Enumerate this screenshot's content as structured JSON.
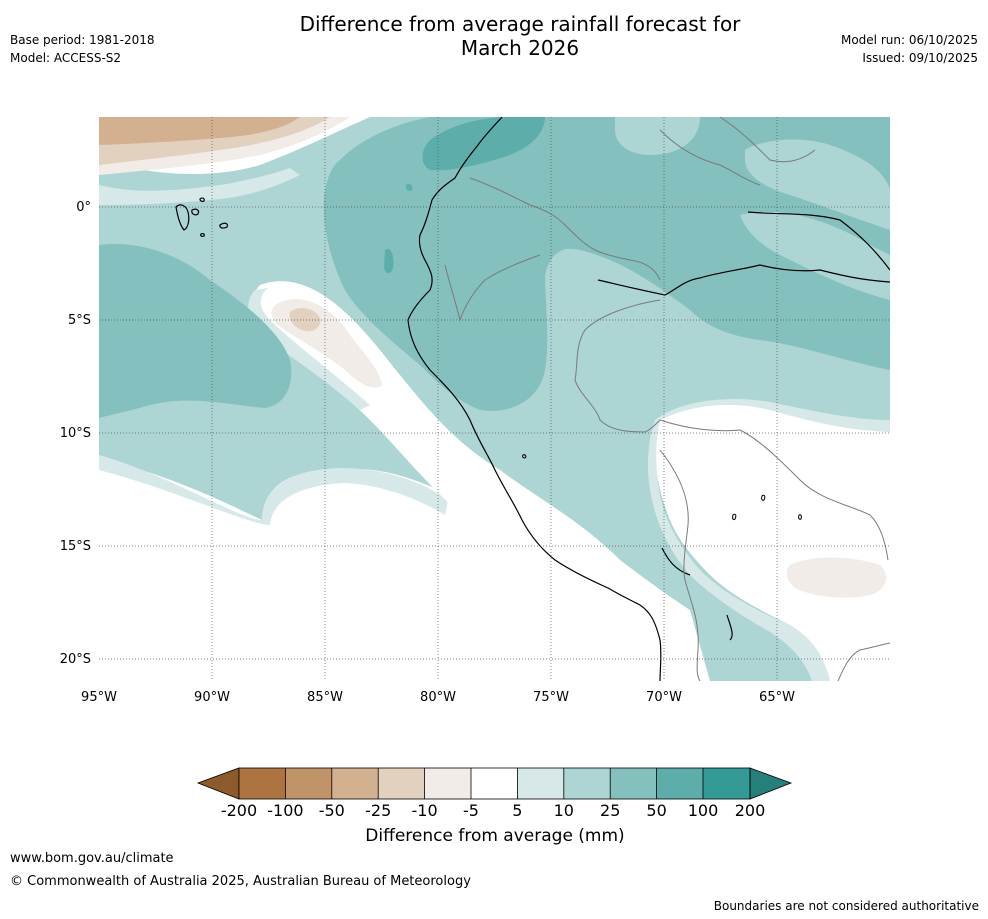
{
  "header": {
    "title_line1": "Difference from average rainfall forecast for",
    "title_line2": "March 2026",
    "base_period": "Base period: 1981-2018",
    "model": "Model: ACCESS-S2",
    "model_run": "Model run: 06/10/2025",
    "issued": "Issued: 09/10/2025"
  },
  "map": {
    "lat_labels": [
      "0°",
      "5°S",
      "10°S",
      "15°S",
      "20°S"
    ],
    "lon_labels": [
      "95°W",
      "90°W",
      "85°W",
      "80°W",
      "75°W",
      "70°W",
      "65°W"
    ]
  },
  "legend": {
    "title": "Difference from average (mm)",
    "ticks": [
      "-200",
      "-100",
      "-50",
      "-25",
      "-10",
      "-5",
      "5",
      "10",
      "25",
      "50",
      "100",
      "200"
    ],
    "colors": {
      "below_200": "#8c5a2b",
      "m200_m100": "#ad7442",
      "m100_m50": "#c19369",
      "m50_m25": "#d3b190",
      "m25_m10": "#e3d1bf",
      "m10_m5": "#f1ece7",
      "m5_p5": "#ffffff",
      "p5_p10": "#d6e9e8",
      "p10_p25": "#acd5d4",
      "p25_p50": "#84c0be",
      "p50_p100": "#5daeab",
      "p100_p200": "#339a96",
      "above_200": "#257f7b"
    }
  },
  "footer": {
    "url": "www.bom.gov.au/climate",
    "copyright": "© Commonwealth of Australia 2025, Australian Bureau of Meteorology",
    "note": "Boundaries are not considered authoritative"
  }
}
